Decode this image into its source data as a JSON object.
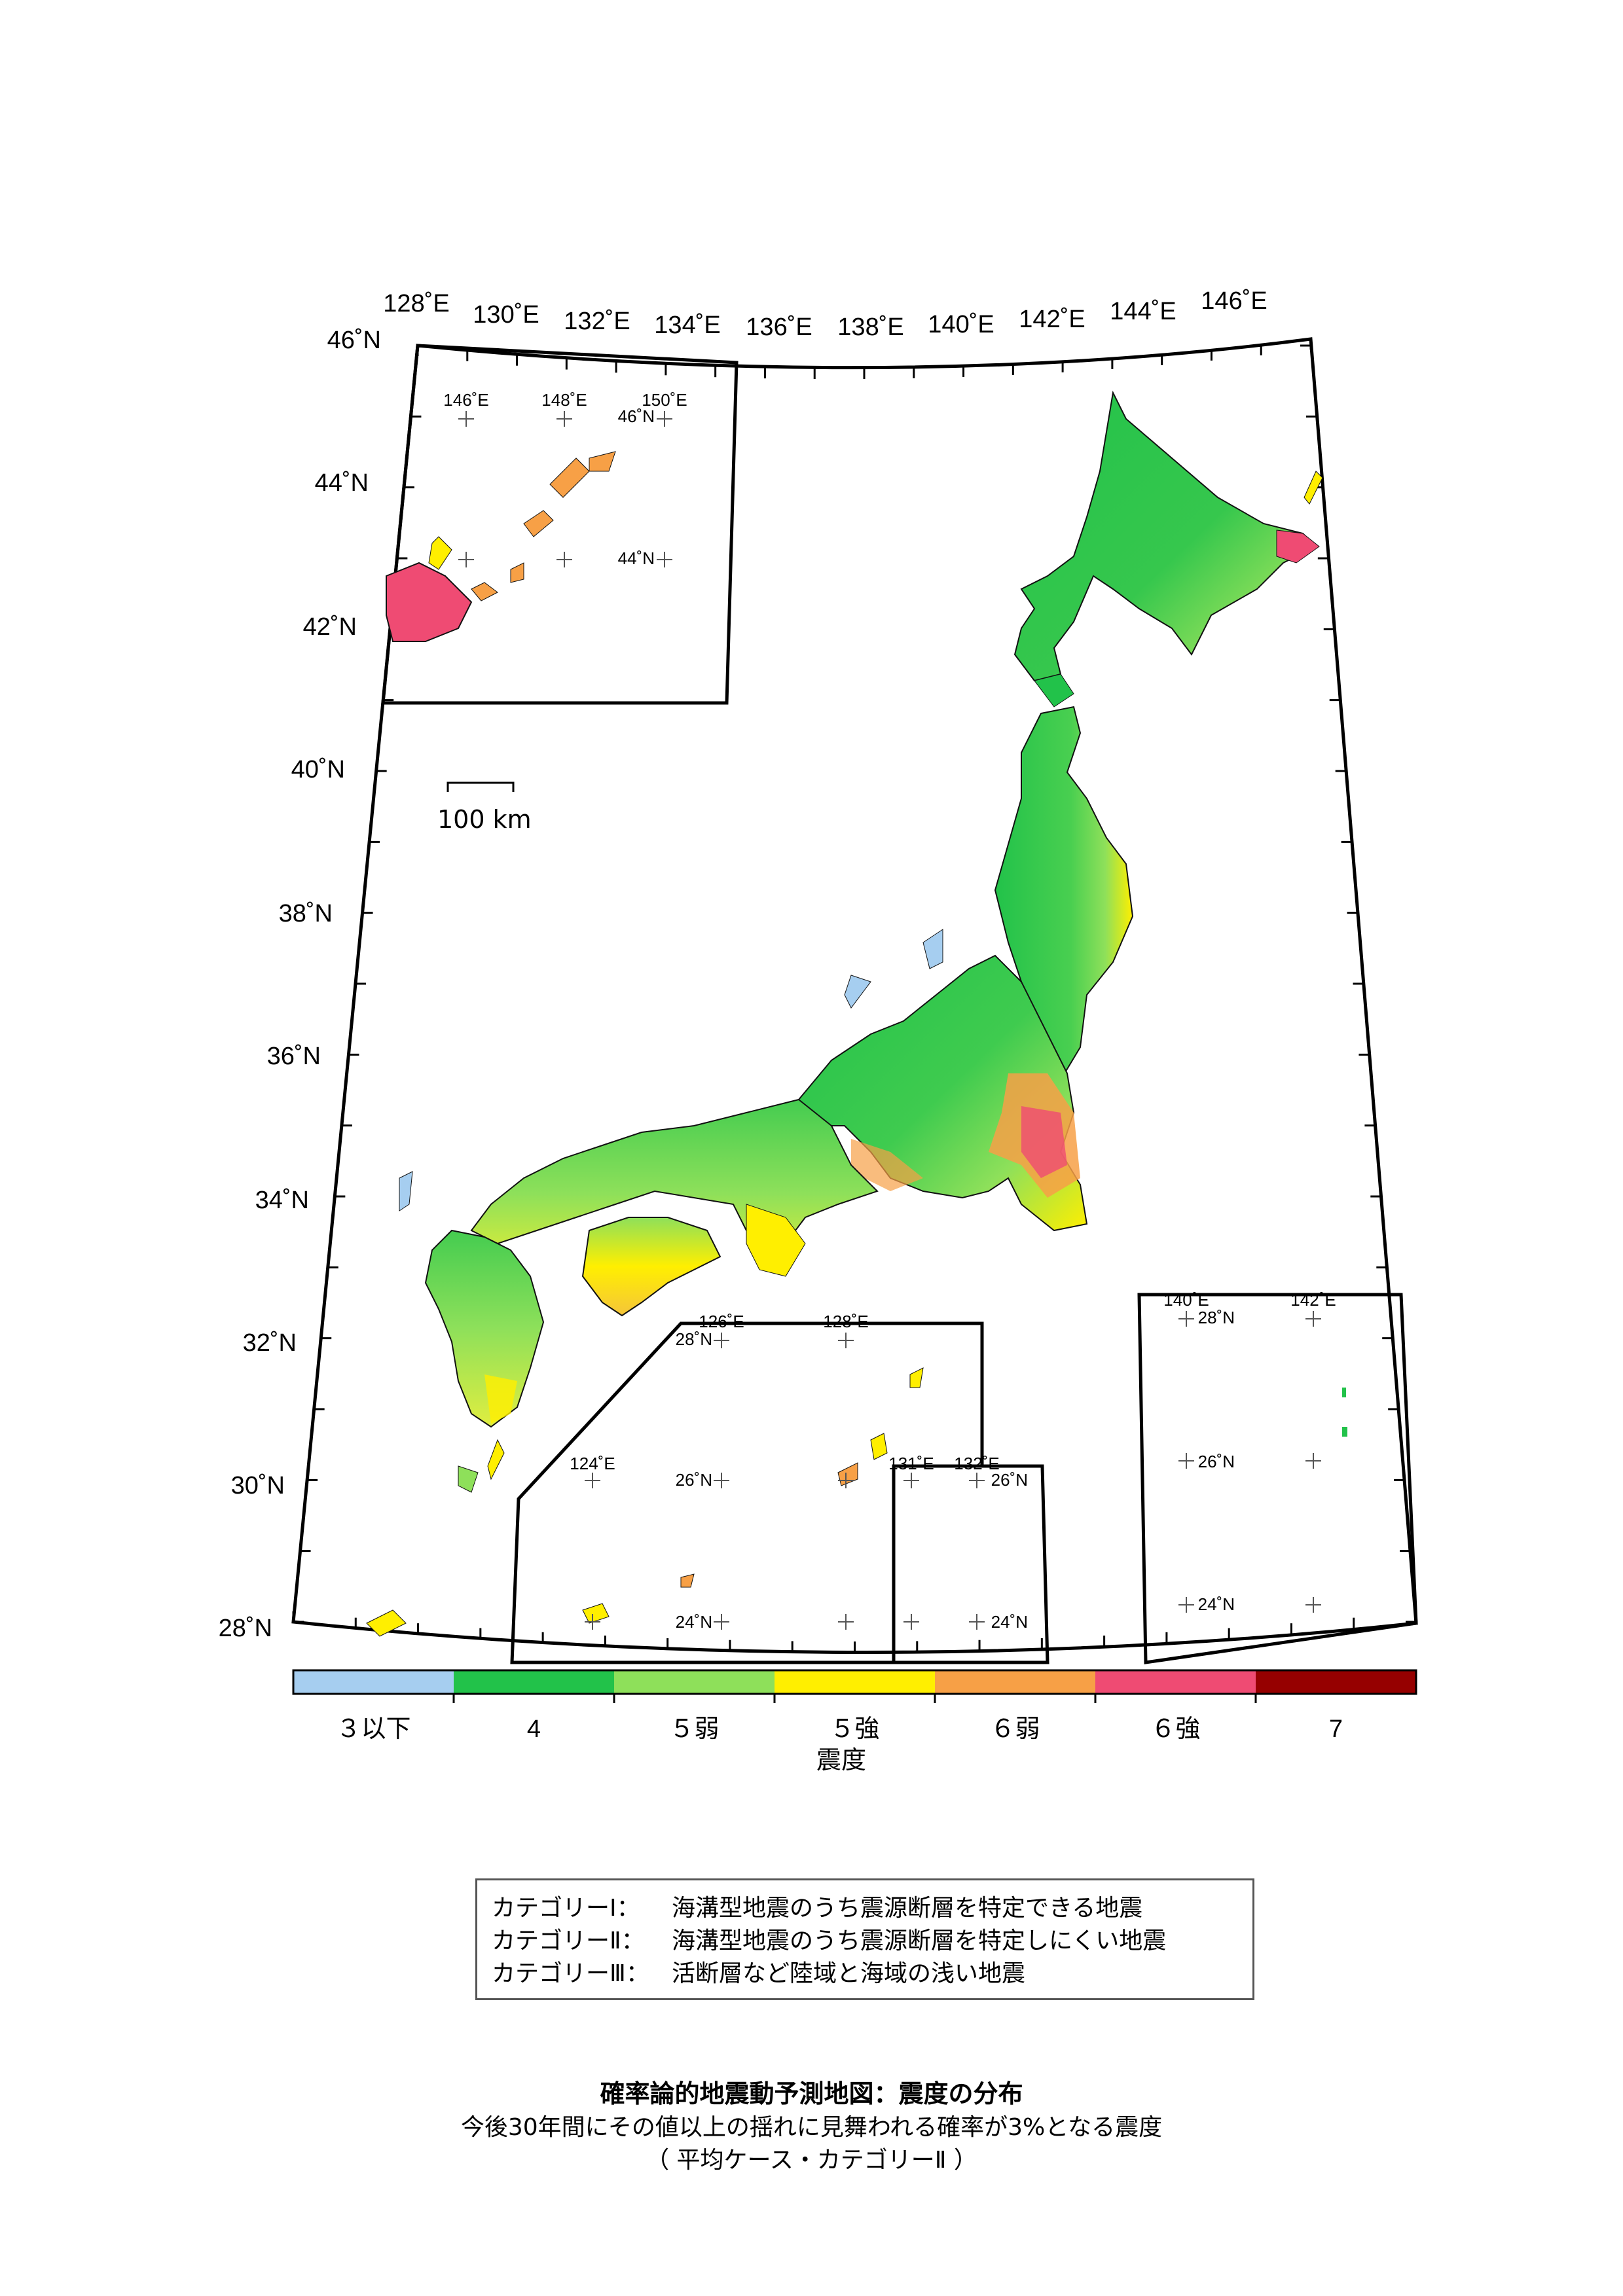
{
  "map": {
    "lon_labels": [
      "128˚E",
      "130˚E",
      "132˚E",
      "134˚E",
      "136˚E",
      "138˚E",
      "140˚E",
      "142˚E",
      "144˚E",
      "146˚E"
    ],
    "lat_labels": [
      "46˚N",
      "44˚N",
      "42˚N",
      "40˚N",
      "38˚N",
      "36˚N",
      "34˚N",
      "32˚N",
      "30˚N",
      "28˚N"
    ],
    "scale_bar": "100 km",
    "insets": {
      "kuril": {
        "lon": [
          "146˚E",
          "148˚E",
          "150˚E"
        ],
        "lat": [
          "46˚N",
          "44˚N"
        ]
      },
      "ryukyu": {
        "lon": [
          "124˚E",
          "126˚E",
          "128˚E"
        ],
        "lat": [
          "28˚N",
          "26˚N",
          "24˚N"
        ]
      },
      "daito": {
        "lon": [
          "131˚E",
          "132˚E"
        ],
        "lat": [
          "26˚N",
          "24˚N"
        ]
      },
      "ogasawara": {
        "lon": [
          "140˚E",
          "142˚E"
        ],
        "lat": [
          "28˚N",
          "26˚N",
          "24˚N"
        ]
      }
    }
  },
  "colorscale": {
    "title": "震度",
    "labels": [
      "３以下",
      "4",
      "５弱",
      "５強",
      "６弱",
      "６強",
      "7"
    ],
    "colors": [
      "#a6cef0",
      "#22c24a",
      "#8ee05a",
      "#ffef00",
      "#f7a046",
      "#ef4b73",
      "#960000"
    ]
  },
  "legend": [
    {
      "category": "カテゴリーⅠ：",
      "text": "海溝型地震のうち震源断層を特定できる地震"
    },
    {
      "category": "カテゴリーⅡ：",
      "text": "海溝型地震のうち震源断層を特定しにくい地震"
    },
    {
      "category": "カテゴリーⅢ：",
      "text": "活断層など陸域と海域の浅い地震"
    }
  ],
  "caption": {
    "title": "確率論的地震動予測地図：震度の分布",
    "subtitle": "今後30年間にその値以上の揺れに見舞われる確率が3%となる震度",
    "case": "（ 平均ケース・カテゴリーⅡ ）"
  }
}
